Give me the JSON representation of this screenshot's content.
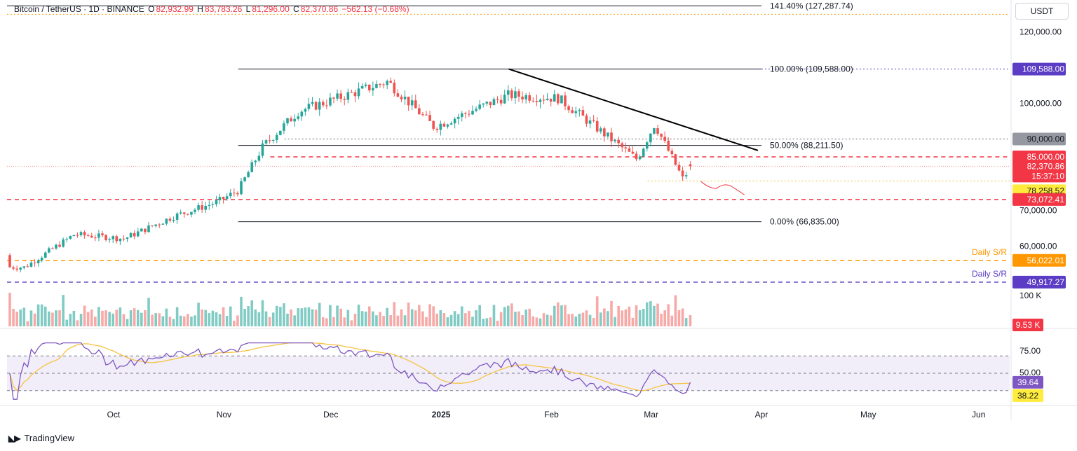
{
  "header": {
    "symbol": "Bitcoin / TetherUS · 1D · BINANCE",
    "open_label": "O",
    "open": "82,932.99",
    "high_label": "H",
    "high": "83,783.26",
    "low_label": "L",
    "low": "81,296.00",
    "close_label": "C",
    "close": "82,370.86",
    "change": "−562.13 (−0.68%)",
    "currency_button": "USDT"
  },
  "colors": {
    "up": "#26a69a",
    "down": "#ef5350",
    "resistance": "#f23645",
    "support_orange": "#ff9800",
    "support_purple": "#5b3cc4",
    "rsi": "#7e57c2",
    "rsi_ma": "#f5c342",
    "fib_top": "#5b3cc4"
  },
  "chart_data": [
    {
      "type": "candlestick",
      "title": "Bitcoin / TetherUS · 1D · BINANCE",
      "ylim": [
        47000,
        130000
      ],
      "y_ticks": [
        "120,000.00",
        "100,000.00",
        "70,000.00",
        "60,000.00"
      ],
      "x_ticks": [
        "Oct",
        "Nov",
        "Dec",
        "2025",
        "Feb",
        "Mar",
        "Apr",
        "May",
        "Jun"
      ],
      "grid": false,
      "ohlc": [
        {
          "date": "2024-09-06",
          "open": 56500,
          "close": 54100
        },
        {
          "date": "2024-09-20",
          "open": 61700,
          "close": 63300
        },
        {
          "date": "2024-10-04",
          "open": 62100,
          "close": 62100
        },
        {
          "date": "2024-10-18",
          "open": 67500,
          "close": 68400
        },
        {
          "date": "2024-10-30",
          "open": 72300,
          "close": 72300
        },
        {
          "date": "2024-11-05",
          "open": 67800,
          "close": 75600
        },
        {
          "date": "2024-11-12",
          "open": 88700,
          "close": 88000
        },
        {
          "date": "2024-11-22",
          "open": 98400,
          "close": 97800
        },
        {
          "date": "2024-12-17",
          "open": 106100,
          "close": 106100
        },
        {
          "date": "2024-12-30",
          "open": 93500,
          "close": 93400
        },
        {
          "date": "2025-01-20",
          "open": 101000,
          "close": 102300
        },
        {
          "date": "2025-02-03",
          "open": 97700,
          "close": 101400
        },
        {
          "date": "2025-02-25",
          "open": 91600,
          "close": 84300
        },
        {
          "date": "2025-03-02",
          "open": 86000,
          "close": 94200
        },
        {
          "date": "2025-03-10",
          "open": 80700,
          "close": 78600
        },
        {
          "date": "2025-03-12",
          "open": 82932.99,
          "high": 83783.26,
          "low": 81296.0,
          "close": 82370.86
        }
      ],
      "lines": [
        {
          "label": "141.40% (127,287.74)",
          "value": 127287.74,
          "style": "fib"
        },
        {
          "label": "100.00% (109,588.00)",
          "value": 109588.0,
          "style": "fib"
        },
        {
          "label": "50.00% (88,211.50)",
          "value": 88211.5,
          "style": "fib"
        },
        {
          "label": "0.00% (66,835.00)",
          "value": 66835.0,
          "style": "fib"
        },
        {
          "label": "90,000.00",
          "value": 90000.0,
          "style": "dotted"
        },
        {
          "label": "85,000.00",
          "value": 85000.0,
          "style": "resistance"
        },
        {
          "label": "78,258.52",
          "value": 78258.52,
          "style": "dotted-yellow"
        },
        {
          "label": "73,072.41",
          "value": 73072.41,
          "style": "resistance"
        },
        {
          "label": "56,022.01",
          "value": 56022.01,
          "style": "support-orange",
          "tag": "Daily S/R"
        },
        {
          "label": "49,917.27",
          "value": 49917.27,
          "style": "support-purple",
          "tag": "Daily S/R"
        }
      ],
      "last_price": {
        "value": 82370.86,
        "label": "82,370.86",
        "countdown": "15:37:10"
      },
      "fib_top_badge": "109,588.00"
    },
    {
      "type": "bar",
      "title": "Volume",
      "y_ticks": [
        "100 K"
      ],
      "last_value_label": "9.53 K"
    },
    {
      "type": "line",
      "title": "RSI",
      "ylim": [
        30,
        85
      ],
      "y_ticks": [
        "75.00",
        "50.00"
      ],
      "series": [
        {
          "last": 39.64,
          "label": "39.64"
        },
        {
          "last": 38.22,
          "label": "38.22"
        }
      ]
    }
  ],
  "footer": {
    "brand": "TradingView"
  }
}
